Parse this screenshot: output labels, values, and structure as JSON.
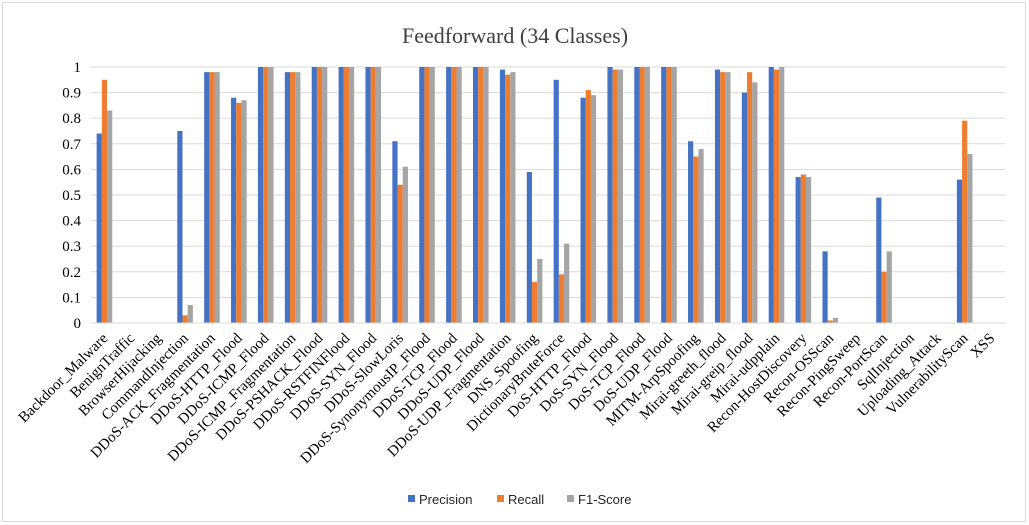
{
  "chart_data": {
    "type": "bar",
    "title": "Feedforward (34 Classes)",
    "xlabel": "",
    "ylabel": "",
    "ylim": [
      0,
      1
    ],
    "yticks": [
      "0",
      "0.1",
      "0.2",
      "0.3",
      "0.4",
      "0.5",
      "0.6",
      "0.7",
      "0.8",
      "0.9",
      "1"
    ],
    "grid": "horizontal",
    "legend_position": "bottom",
    "categories": [
      "Backdoor_Malware",
      "BenignTraffic",
      "BrowserHijacking",
      "CommandInjection",
      "DDoS-ACK_Fragmentation",
      "DDoS-HTTP_Flood",
      "DDoS-ICMP_Flood",
      "DDoS-ICMP_Fragmentation",
      "DDoS-PSHACK_Flood",
      "DDoS-RSTFINFlood",
      "DDoS-SYN_Flood",
      "DDoS-SlowLoris",
      "DDoS-SynonymousIP_Flood",
      "DDoS-TCP_Flood",
      "DDoS-UDP_Flood",
      "DDoS-UDP_Fragmentation",
      "DNS_Spoofing",
      "DictionaryBruteForce",
      "DoS-HTTP_Flood",
      "DoS-SYN_Flood",
      "DoS-TCP_Flood",
      "DoS-UDP_Flood",
      "MITM-ArpSpoofing",
      "Mirai-greeth_flood",
      "Mirai-greip_flood",
      "Mirai-udpplain",
      "Recon-HostDiscovery",
      "Recon-OSScan",
      "Recon-PingSweep",
      "Recon-PortScan",
      "SqlInjection",
      "Uploading_Attack",
      "VulnerabilityScan",
      "XSS"
    ],
    "series": [
      {
        "name": "Precision",
        "color": "#4472c4",
        "values": [
          0.74,
          0,
          0,
          0.75,
          0.98,
          0.88,
          1,
          0.98,
          1,
          1,
          1,
          0.71,
          1,
          1,
          1,
          0.99,
          0.59,
          0.95,
          0.88,
          1,
          1,
          1,
          0.71,
          0.99,
          0.9,
          1,
          0.57,
          0.28,
          0,
          0.49,
          0,
          0,
          0.56,
          0
        ]
      },
      {
        "name": "Recall",
        "color": "#ed7d31",
        "values": [
          0.95,
          0,
          0,
          0.03,
          0.98,
          0.86,
          1,
          0.98,
          1,
          1,
          1,
          0.54,
          1,
          1,
          1,
          0.97,
          0.16,
          0.19,
          0.91,
          0.99,
          1,
          1,
          0.65,
          0.98,
          0.98,
          0.99,
          0.58,
          0.01,
          0,
          0.2,
          0,
          0,
          0.79,
          0
        ]
      },
      {
        "name": "F1-Score",
        "color": "#a5a5a5",
        "values": [
          0.83,
          0,
          0,
          0.07,
          0.98,
          0.87,
          1,
          0.98,
          1,
          1,
          1,
          0.61,
          1,
          1,
          1,
          0.98,
          0.25,
          0.31,
          0.89,
          0.99,
          1,
          1,
          0.68,
          0.98,
          0.94,
          1,
          0.57,
          0.02,
          0,
          0.28,
          0,
          0,
          0.66,
          0
        ]
      }
    ]
  }
}
